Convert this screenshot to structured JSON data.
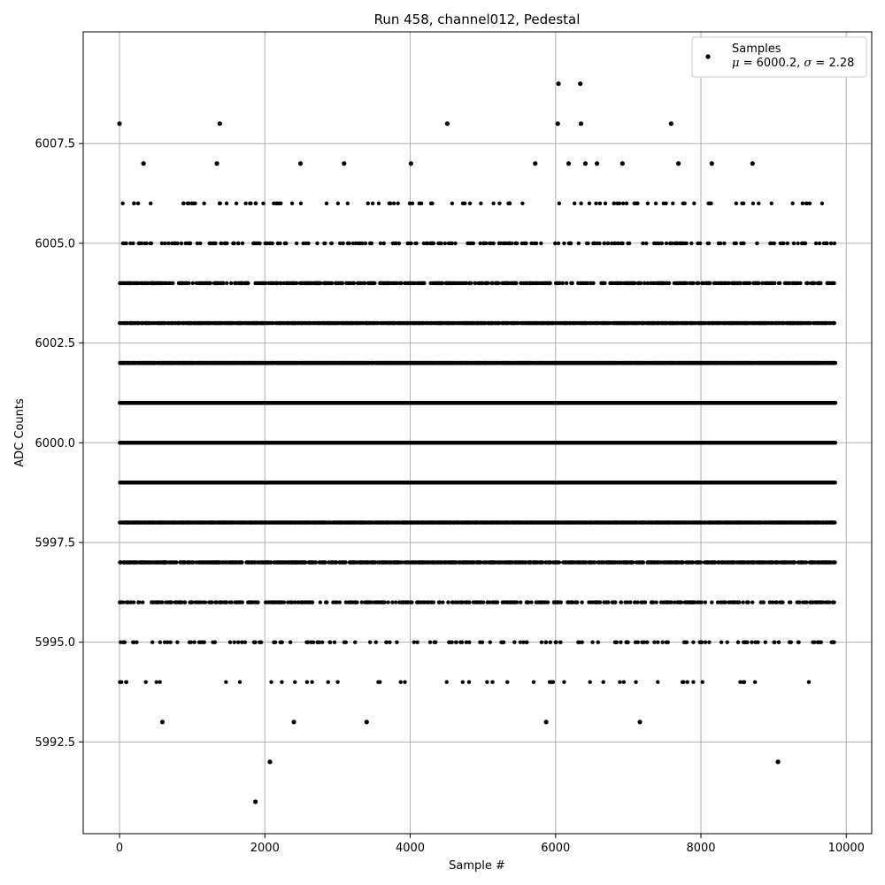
{
  "chart_data": {
    "type": "scatter",
    "title": "Run 458, channel012, Pedestal",
    "xlabel": "Sample #",
    "ylabel": "ADC Counts",
    "xlim": [
      -500,
      10350
    ],
    "ylim": [
      5990.2,
      6010.3
    ],
    "x_ticks": [
      0,
      2000,
      4000,
      6000,
      8000,
      10000
    ],
    "x_tick_labels": [
      "0",
      "2000",
      "4000",
      "6000",
      "8000",
      "10000"
    ],
    "y_ticks": [
      5992.5,
      5995.0,
      5997.5,
      6000.0,
      6002.5,
      6005.0,
      6007.5
    ],
    "y_tick_labels": [
      "5992.5",
      "5995.0",
      "5997.5",
      "6000.0",
      "6002.5",
      "6005.0",
      "6007.5"
    ],
    "grid": true,
    "legend_position": "top-right",
    "marker_color": "#000000",
    "series": [
      {
        "name": "Samples",
        "stats_label": "μ = 6000.2, σ = 2.28",
        "stats_mu": "6000.2",
        "stats_sigma": "2.28",
        "n_points_note": "dense samples 0–9850 at integer levels; notable points listed below",
        "levels": [
          5991,
          5992,
          5993,
          5994,
          5995,
          5996,
          5997,
          5998,
          5999,
          6000,
          6001,
          6002,
          6003,
          6004,
          6005,
          6006,
          6007,
          6008,
          6009
        ],
        "x_range": [
          0,
          9850
        ],
        "points": [
          [
            0,
            6008
          ],
          [
            1380,
            6008
          ],
          [
            4510,
            6008
          ],
          [
            6030,
            6008
          ],
          [
            6350,
            6008
          ],
          [
            7590,
            6008
          ],
          [
            6040,
            6009
          ],
          [
            6340,
            6009
          ],
          [
            330,
            6007
          ],
          [
            1340,
            6007
          ],
          [
            2490,
            6007
          ],
          [
            3090,
            6007
          ],
          [
            4010,
            6007
          ],
          [
            5720,
            6007
          ],
          [
            6180,
            6007
          ],
          [
            6410,
            6007
          ],
          [
            6570,
            6007
          ],
          [
            6920,
            6007
          ],
          [
            7690,
            6007
          ],
          [
            8150,
            6007
          ],
          [
            8710,
            6007
          ],
          [
            590,
            5993
          ],
          [
            2400,
            5993
          ],
          [
            3400,
            5993
          ],
          [
            5870,
            5993
          ],
          [
            7160,
            5993
          ],
          [
            2070,
            5992
          ],
          [
            9060,
            5992
          ],
          [
            1870,
            5991
          ]
        ]
      }
    ]
  }
}
